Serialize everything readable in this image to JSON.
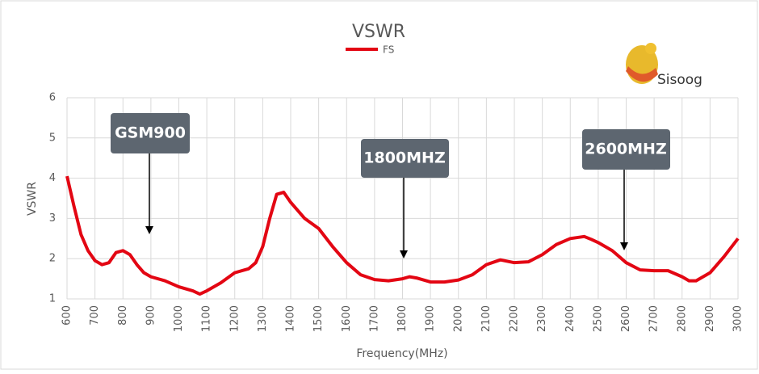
{
  "chart_data": {
    "type": "line",
    "title": "VSWR",
    "x_label": "Frequency(MHz)",
    "y_label": "VSWR",
    "x": [
      600,
      625,
      650,
      675,
      700,
      725,
      750,
      775,
      800,
      825,
      850,
      875,
      900,
      950,
      1000,
      1050,
      1075,
      1100,
      1150,
      1200,
      1250,
      1275,
      1300,
      1325,
      1350,
      1375,
      1400,
      1450,
      1500,
      1550,
      1600,
      1650,
      1700,
      1750,
      1800,
      1825,
      1850,
      1900,
      1950,
      2000,
      2050,
      2100,
      2150,
      2200,
      2250,
      2300,
      2350,
      2400,
      2450,
      2475,
      2500,
      2550,
      2600,
      2650,
      2700,
      2750,
      2800,
      2825,
      2850,
      2900,
      2950,
      3000
    ],
    "series": [
      {
        "name": "FS",
        "color": "#e30613",
        "values": [
          4.05,
          3.3,
          2.6,
          2.2,
          1.95,
          1.85,
          1.9,
          2.15,
          2.2,
          2.1,
          1.85,
          1.65,
          1.55,
          1.45,
          1.3,
          1.2,
          1.12,
          1.2,
          1.4,
          1.65,
          1.75,
          1.9,
          2.3,
          3.0,
          3.6,
          3.65,
          3.4,
          3.0,
          2.75,
          2.3,
          1.9,
          1.6,
          1.48,
          1.45,
          1.5,
          1.55,
          1.52,
          1.42,
          1.42,
          1.47,
          1.6,
          1.85,
          1.97,
          1.9,
          1.92,
          2.1,
          2.35,
          2.5,
          2.55,
          2.48,
          2.4,
          2.2,
          1.9,
          1.72,
          1.7,
          1.7,
          1.55,
          1.45,
          1.45,
          1.65,
          2.05,
          2.5
        ]
      }
    ],
    "xlim": [
      600,
      3000
    ],
    "xticks": [
      600,
      700,
      800,
      900,
      1000,
      1100,
      1200,
      1300,
      1400,
      1500,
      1600,
      1700,
      1800,
      1900,
      2000,
      2100,
      2200,
      2300,
      2400,
      2500,
      2600,
      2700,
      2800,
      2900,
      3000
    ],
    "ylim": [
      1,
      6
    ],
    "yticks": [
      1,
      2,
      3,
      4,
      5,
      6
    ],
    "grid": true,
    "annotations": [
      "GSM900",
      "1800MHZ",
      "2600MHZ"
    ],
    "logo": "Sisoog"
  }
}
